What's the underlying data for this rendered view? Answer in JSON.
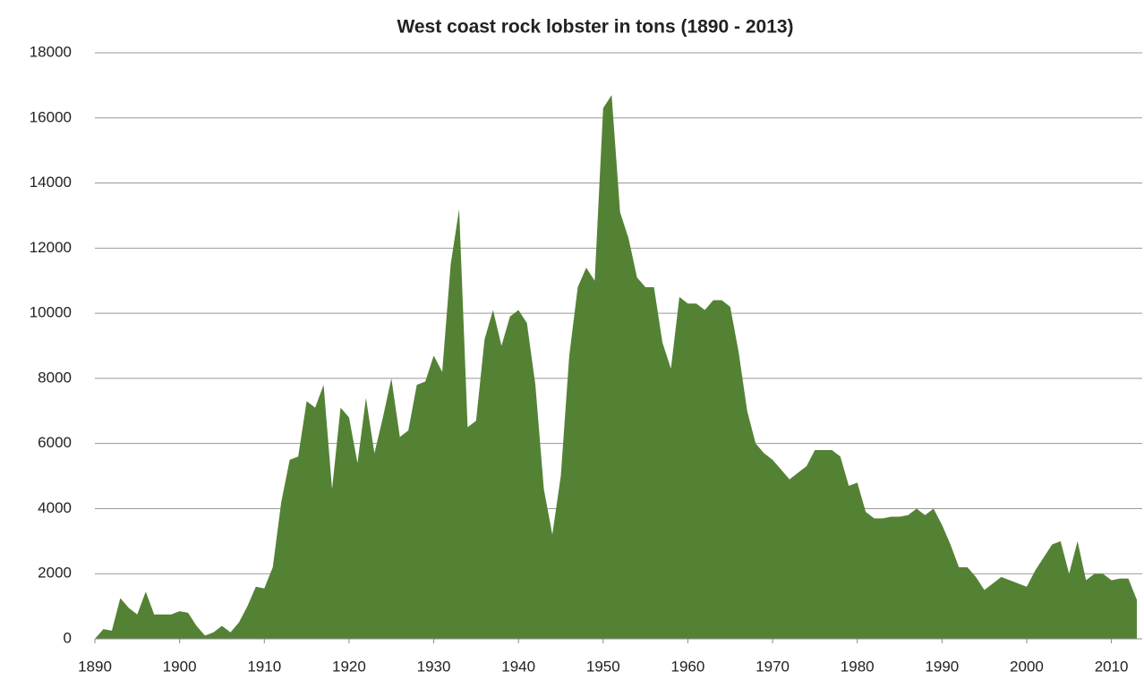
{
  "chart_data": {
    "type": "area",
    "title": "West coast rock lobster in tons (1890 - 2013)",
    "color": "#548235",
    "grid": true,
    "x": [
      1890,
      1891,
      1892,
      1893,
      1894,
      1895,
      1896,
      1897,
      1898,
      1899,
      1900,
      1901,
      1902,
      1903,
      1904,
      1905,
      1906,
      1907,
      1908,
      1909,
      1910,
      1911,
      1912,
      1913,
      1914,
      1915,
      1916,
      1917,
      1918,
      1919,
      1920,
      1921,
      1922,
      1923,
      1924,
      1925,
      1926,
      1927,
      1928,
      1929,
      1930,
      1931,
      1932,
      1933,
      1934,
      1935,
      1936,
      1937,
      1938,
      1939,
      1940,
      1941,
      1942,
      1943,
      1944,
      1945,
      1946,
      1947,
      1948,
      1949,
      1950,
      1951,
      1952,
      1953,
      1954,
      1955,
      1956,
      1957,
      1958,
      1959,
      1960,
      1961,
      1962,
      1963,
      1964,
      1965,
      1966,
      1967,
      1968,
      1969,
      1970,
      1971,
      1972,
      1973,
      1974,
      1975,
      1976,
      1977,
      1978,
      1979,
      1980,
      1981,
      1982,
      1983,
      1984,
      1985,
      1986,
      1987,
      1988,
      1989,
      1990,
      1991,
      1992,
      1993,
      1994,
      1995,
      1996,
      1997,
      1998,
      1999,
      2000,
      2001,
      2002,
      2003,
      2004,
      2005,
      2006,
      2007,
      2008,
      2009,
      2010,
      2011,
      2012,
      2013
    ],
    "values": [
      0,
      300,
      250,
      1250,
      950,
      750,
      1450,
      750,
      750,
      750,
      850,
      800,
      400,
      100,
      200,
      400,
      200,
      500,
      1000,
      1600,
      1550,
      2200,
      4200,
      5500,
      5600,
      7300,
      7100,
      7800,
      4600,
      7100,
      6800,
      5400,
      7400,
      5700,
      6800,
      8000,
      6200,
      6400,
      7800,
      7900,
      8700,
      8200,
      11500,
      13200,
      6500,
      6700,
      9200,
      10100,
      9000,
      9900,
      10100,
      9700,
      7800,
      4600,
      3200,
      5000,
      8700,
      10800,
      11400,
      11000,
      16300,
      16700,
      13100,
      12300,
      11100,
      10800,
      10800,
      9100,
      8300,
      10500,
      10300,
      10300,
      10100,
      10400,
      10400,
      10200,
      8800,
      7000,
      6000,
      5700,
      5500,
      5200,
      4900,
      5100,
      5300,
      5800,
      5800,
      5800,
      5600,
      4700,
      4800,
      3900,
      3700,
      3700,
      3750,
      3750,
      3800,
      4000,
      3800,
      4000,
      3500,
      2900,
      2200,
      2200,
      1900,
      1500,
      1700,
      1900,
      1800,
      1700,
      1600,
      2100,
      2500,
      2900,
      3000,
      2000,
      3000,
      1800,
      2000,
      2000,
      1800,
      1850,
      1850,
      1200
    ],
    "xlim": [
      1890,
      2013
    ],
    "xticks": [
      1890,
      1900,
      1910,
      1920,
      1930,
      1940,
      1950,
      1960,
      1970,
      1980,
      1990,
      2000,
      2010
    ],
    "ylim": [
      0,
      18000
    ],
    "yticks": [
      0,
      2000,
      4000,
      6000,
      8000,
      10000,
      12000,
      14000,
      16000,
      18000
    ]
  }
}
